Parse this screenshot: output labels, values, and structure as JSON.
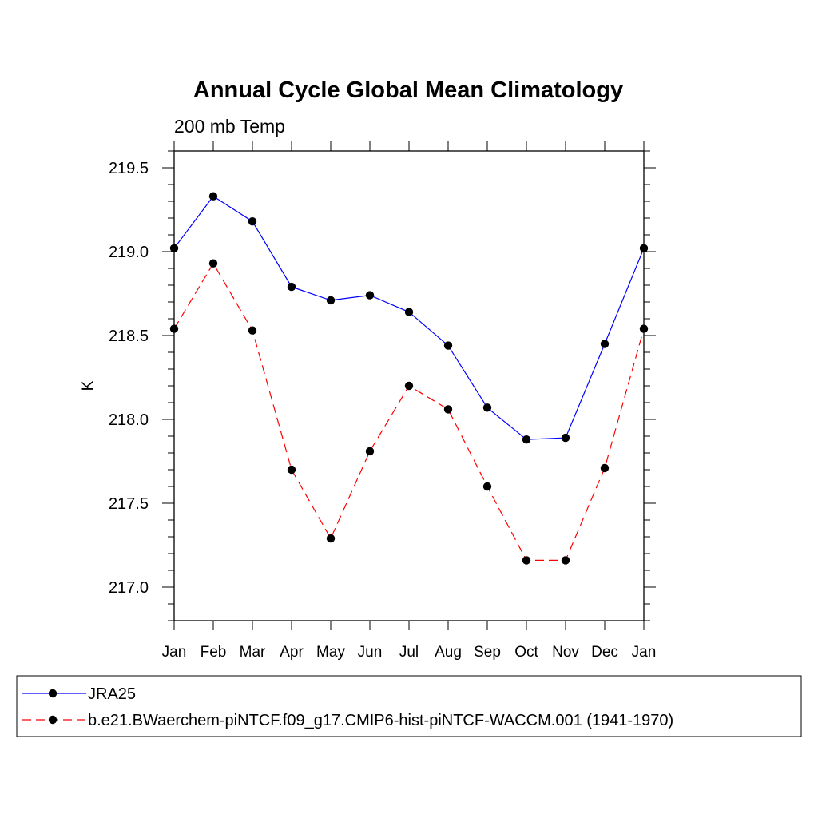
{
  "chart_data": {
    "type": "line",
    "title": "Annual Cycle Global Mean Climatology",
    "subtitle": "200 mb Temp",
    "xlabel": "",
    "ylabel": "K",
    "categories": [
      "Jan",
      "Feb",
      "Mar",
      "Apr",
      "May",
      "Jun",
      "Jul",
      "Aug",
      "Sep",
      "Oct",
      "Nov",
      "Dec",
      "Jan"
    ],
    "yticks": [
      "217.0",
      "217.5",
      "218.0",
      "218.5",
      "219.0",
      "219.5"
    ],
    "ylim": [
      216.8,
      219.6
    ],
    "grid": false,
    "legend_position": "bottom",
    "series": [
      {
        "name": "JRA25",
        "color": "#0000ff",
        "style": "solid",
        "values": [
          219.02,
          219.33,
          219.18,
          218.79,
          218.71,
          218.74,
          218.64,
          218.44,
          218.07,
          217.88,
          217.89,
          218.45,
          219.02
        ]
      },
      {
        "name": "b.e21.BWaerchem-piNTCF.f09_g17.CMIP6-hist-piNTCF-WACCM.001 (1941-1970)",
        "color": "#ff0000",
        "style": "dashed",
        "values": [
          218.54,
          218.93,
          218.53,
          217.7,
          217.29,
          217.81,
          218.2,
          218.06,
          217.6,
          217.16,
          217.16,
          217.71,
          218.54
        ]
      }
    ]
  }
}
